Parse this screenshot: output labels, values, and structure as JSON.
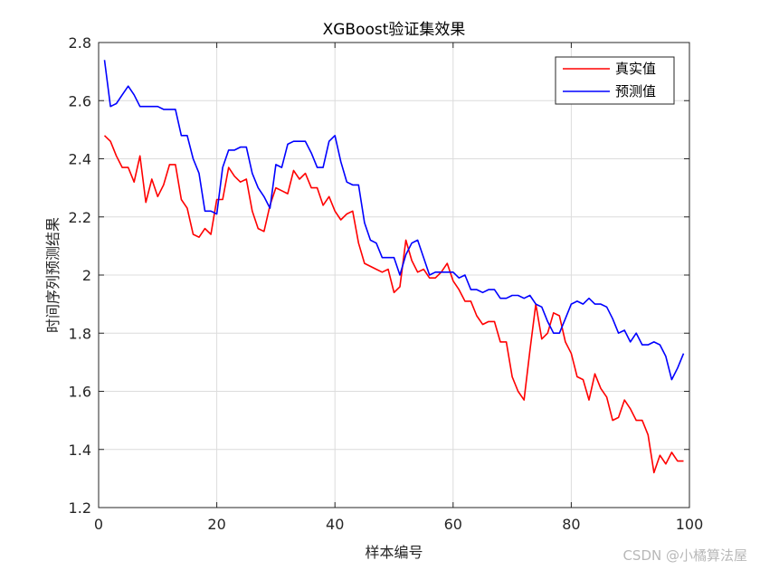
{
  "chart_data": {
    "type": "line",
    "title": "XGBoost验证集效果",
    "xlabel": "样本编号",
    "ylabel": "时间序列预测结果",
    "xlim": [
      0,
      100
    ],
    "ylim": [
      1.2,
      2.8
    ],
    "xticks": [
      0,
      20,
      40,
      60,
      80,
      100
    ],
    "yticks": [
      1.2,
      1.4,
      1.6,
      1.8,
      2,
      2.2,
      2.4,
      2.6,
      2.8
    ],
    "xtick_labels": [
      "0",
      "20",
      "40",
      "60",
      "80",
      "100"
    ],
    "ytick_labels": [
      "1.2",
      "1.4",
      "1.6",
      "1.8",
      "2",
      "2.2",
      "2.4",
      "2.6",
      "2.8"
    ],
    "grid": true,
    "legend_position": "top-right",
    "x": [
      1,
      2,
      3,
      4,
      5,
      6,
      7,
      8,
      9,
      10,
      11,
      12,
      13,
      14,
      15,
      16,
      17,
      18,
      19,
      20,
      21,
      22,
      23,
      24,
      25,
      26,
      27,
      28,
      29,
      30,
      31,
      32,
      33,
      34,
      35,
      36,
      37,
      38,
      39,
      40,
      41,
      42,
      43,
      44,
      45,
      46,
      47,
      48,
      49,
      50,
      51,
      52,
      53,
      54,
      55,
      56,
      57,
      58,
      59,
      60,
      61,
      62,
      63,
      64,
      65,
      66,
      67,
      68,
      69,
      70,
      71,
      72,
      73,
      74,
      75,
      76,
      77,
      78,
      79,
      80,
      81,
      82,
      83,
      84,
      85,
      86,
      87,
      88,
      89,
      90,
      91,
      92,
      93,
      94,
      95,
      96,
      97,
      98,
      99
    ],
    "series": [
      {
        "name": "真实值",
        "color": "#ff0000",
        "values": [
          2.48,
          2.46,
          2.41,
          2.37,
          2.37,
          2.32,
          2.41,
          2.25,
          2.33,
          2.27,
          2.31,
          2.38,
          2.38,
          2.26,
          2.23,
          2.14,
          2.13,
          2.16,
          2.14,
          2.26,
          2.26,
          2.37,
          2.34,
          2.32,
          2.33,
          2.22,
          2.16,
          2.15,
          2.24,
          2.3,
          2.29,
          2.28,
          2.36,
          2.33,
          2.35,
          2.3,
          2.3,
          2.24,
          2.27,
          2.22,
          2.19,
          2.21,
          2.22,
          2.11,
          2.04,
          2.03,
          2.02,
          2.01,
          2.02,
          1.94,
          1.96,
          2.12,
          2.05,
          2.01,
          2.02,
          1.99,
          1.99,
          2.01,
          2.04,
          1.98,
          1.95,
          1.91,
          1.91,
          1.86,
          1.83,
          1.84,
          1.84,
          1.77,
          1.77,
          1.65,
          1.6,
          1.57,
          1.74,
          1.9,
          1.78,
          1.8,
          1.87,
          1.86,
          1.77,
          1.73,
          1.65,
          1.64,
          1.57,
          1.66,
          1.61,
          1.58,
          1.5,
          1.51,
          1.57,
          1.54,
          1.5,
          1.5,
          1.45,
          1.32,
          1.38,
          1.35,
          1.39,
          1.36,
          1.36
        ]
      },
      {
        "name": "预测值",
        "color": "#0000ff",
        "values": [
          2.74,
          2.58,
          2.59,
          2.62,
          2.65,
          2.62,
          2.58,
          2.58,
          2.58,
          2.58,
          2.57,
          2.57,
          2.57,
          2.48,
          2.48,
          2.4,
          2.35,
          2.22,
          2.22,
          2.21,
          2.37,
          2.43,
          2.43,
          2.44,
          2.44,
          2.35,
          2.3,
          2.27,
          2.23,
          2.38,
          2.37,
          2.45,
          2.46,
          2.46,
          2.46,
          2.42,
          2.37,
          2.37,
          2.46,
          2.48,
          2.39,
          2.32,
          2.31,
          2.31,
          2.18,
          2.12,
          2.11,
          2.06,
          2.06,
          2.06,
          2.0,
          2.07,
          2.11,
          2.12,
          2.06,
          2.0,
          2.01,
          2.01,
          2.01,
          2.01,
          1.99,
          2.0,
          1.95,
          1.95,
          1.94,
          1.95,
          1.95,
          1.92,
          1.92,
          1.93,
          1.93,
          1.92,
          1.93,
          1.9,
          1.89,
          1.84,
          1.8,
          1.8,
          1.85,
          1.9,
          1.91,
          1.9,
          1.92,
          1.9,
          1.9,
          1.89,
          1.85,
          1.8,
          1.81,
          1.77,
          1.8,
          1.76,
          1.76,
          1.77,
          1.76,
          1.72,
          1.64,
          1.68,
          1.73
        ]
      }
    ]
  },
  "watermark": "CSDN @小橘算法屋"
}
